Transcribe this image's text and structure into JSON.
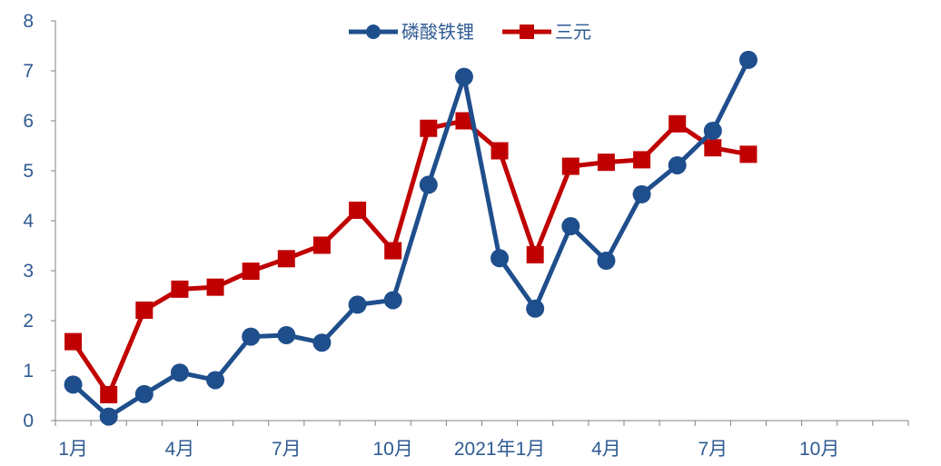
{
  "chart_data": {
    "type": "line",
    "title": "",
    "xlabel": "",
    "ylabel": "",
    "ylim": [
      0,
      8
    ],
    "yticks": [
      0,
      1,
      2,
      3,
      4,
      5,
      6,
      7,
      8
    ],
    "x_tick_labels": [
      {
        "index": 0,
        "label": "1月"
      },
      {
        "index": 3,
        "label": "4月"
      },
      {
        "index": 6,
        "label": "7月"
      },
      {
        "index": 9,
        "label": "10月"
      },
      {
        "index": 12,
        "label": "2021年1月"
      },
      {
        "index": 15,
        "label": "4月"
      },
      {
        "index": 18,
        "label": "7月"
      },
      {
        "index": 21,
        "label": "10月"
      }
    ],
    "num_slots": 24,
    "grid": false,
    "legend_position": "top-center",
    "series": [
      {
        "name": "磷酸铁锂",
        "color": "#1f4e8c",
        "marker": "circle",
        "values": [
          0.72,
          0.08,
          0.53,
          0.96,
          0.81,
          1.68,
          1.71,
          1.56,
          2.32,
          2.41,
          4.72,
          6.88,
          3.25,
          2.24,
          3.89,
          3.2,
          4.53,
          5.11,
          5.8,
          7.22
        ]
      },
      {
        "name": "三元",
        "color": "#c00000",
        "marker": "square",
        "values": [
          1.58,
          0.52,
          2.21,
          2.63,
          2.67,
          2.99,
          3.24,
          3.51,
          4.21,
          3.4,
          5.85,
          6.0,
          5.4,
          3.32,
          5.09,
          5.17,
          5.22,
          5.94,
          5.46,
          5.33
        ]
      }
    ]
  }
}
